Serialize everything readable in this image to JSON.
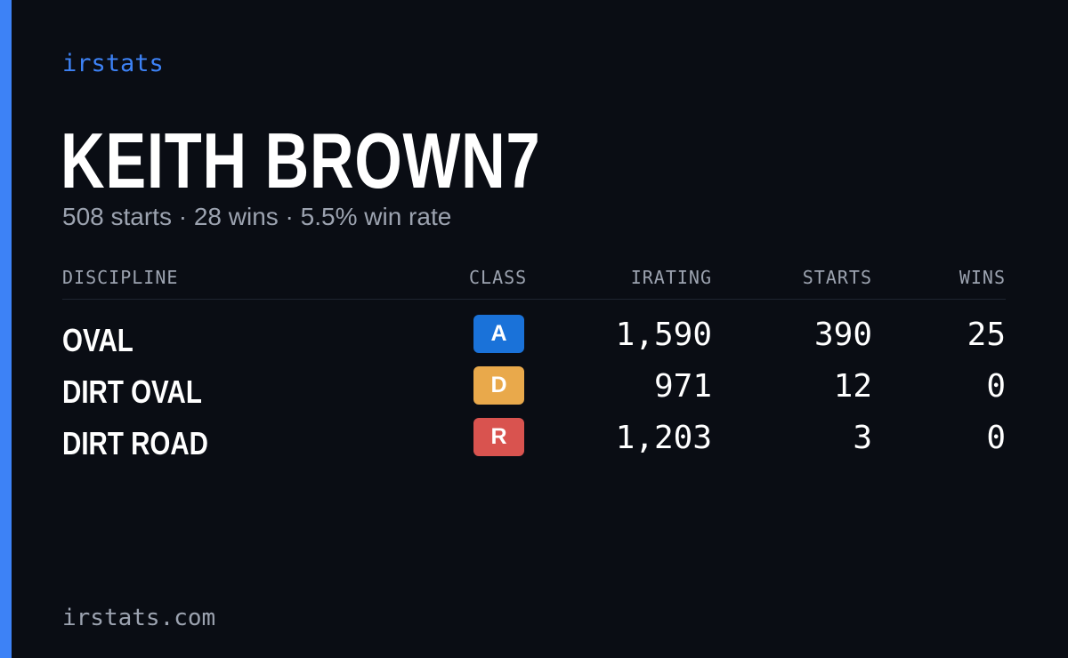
{
  "brand": "irstats",
  "player": {
    "name": "KEITH BROWN7",
    "summary": "508 starts · 28 wins · 5.5% win rate"
  },
  "table": {
    "headers": {
      "discipline": "DISCIPLINE",
      "class": "CLASS",
      "irating": "IRATING",
      "starts": "STARTS",
      "wins": "WINS"
    },
    "rows": [
      {
        "discipline": "OVAL",
        "class": "A",
        "class_color": "#1a72d9",
        "irating": "1,590",
        "starts": "390",
        "wins": "25"
      },
      {
        "discipline": "DIRT OVAL",
        "class": "D",
        "class_color": "#e9a94b",
        "irating": "971",
        "starts": "12",
        "wins": "0"
      },
      {
        "discipline": "DIRT ROAD",
        "class": "R",
        "class_color": "#d9534f",
        "irating": "1,203",
        "starts": "3",
        "wins": "0"
      }
    ]
  },
  "footer": "irstats.com",
  "colors": {
    "accent": "#3d82f6",
    "background": "#0a0d14",
    "muted": "#9ca3b0"
  }
}
